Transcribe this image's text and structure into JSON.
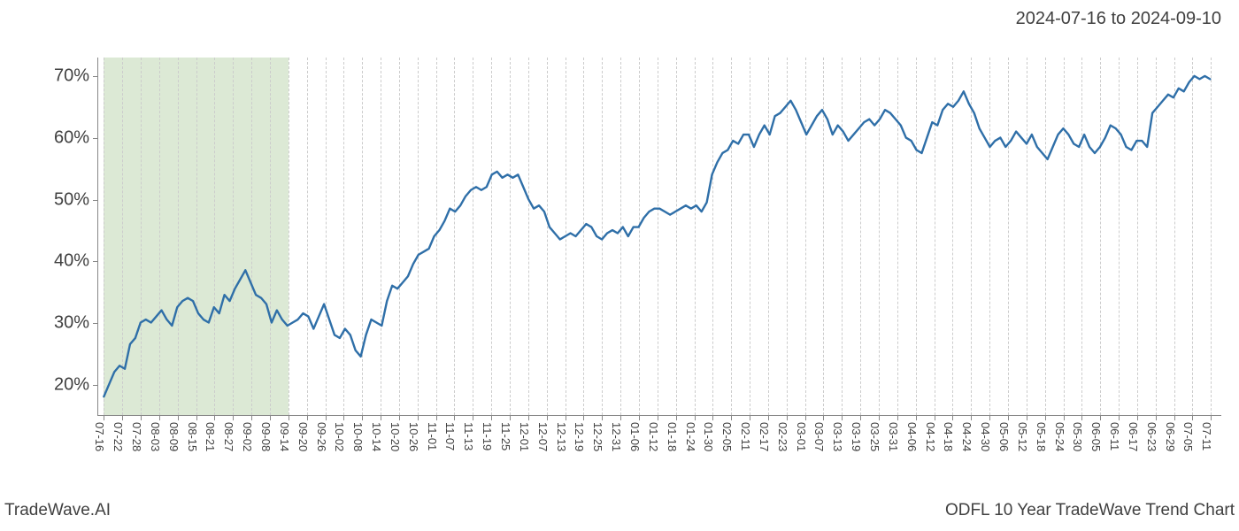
{
  "header": {
    "date_range": "2024-07-16 to 2024-09-10"
  },
  "footer": {
    "left": "TradeWave.AI",
    "right": "ODFL 10 Year TradeWave Trend Chart"
  },
  "chart": {
    "type": "line",
    "background_color": "#ffffff",
    "grid_color": "#cccccc",
    "axis_color": "#888888",
    "line_color": "#2f6fa8",
    "line_width": 2.4,
    "highlight_band": {
      "color": "#dce9d5",
      "x_start_index": 0,
      "x_end_index": 10
    },
    "y_axis": {
      "min": 15,
      "max": 73,
      "ticks": [
        20,
        30,
        40,
        50,
        60,
        70
      ],
      "tick_suffix": "%",
      "label_fontsize": 20
    },
    "x_axis": {
      "labels": [
        "07-16",
        "07-22",
        "07-28",
        "08-03",
        "08-09",
        "08-15",
        "08-21",
        "08-27",
        "09-02",
        "09-08",
        "09-14",
        "09-20",
        "09-26",
        "10-02",
        "10-08",
        "10-14",
        "10-20",
        "10-26",
        "11-01",
        "11-07",
        "11-13",
        "11-19",
        "11-25",
        "12-01",
        "12-07",
        "12-13",
        "12-19",
        "12-25",
        "12-31",
        "01-06",
        "01-12",
        "01-18",
        "01-24",
        "01-30",
        "02-05",
        "02-11",
        "02-17",
        "02-23",
        "03-01",
        "03-07",
        "03-13",
        "03-19",
        "03-25",
        "03-31",
        "04-06",
        "04-12",
        "04-18",
        "04-24",
        "04-30",
        "05-06",
        "05-12",
        "05-18",
        "05-24",
        "05-30",
        "06-05",
        "06-11",
        "06-17",
        "06-23",
        "06-29",
        "07-05",
        "07-11"
      ],
      "label_fontsize": 13
    },
    "series": {
      "values": [
        18.0,
        20.0,
        22.0,
        23.0,
        22.5,
        26.5,
        27.5,
        30.0,
        30.5,
        30.0,
        31.0,
        32.0,
        30.5,
        29.5,
        32.5,
        33.5,
        34.0,
        33.5,
        31.5,
        30.5,
        30.0,
        32.5,
        31.5,
        34.5,
        33.5,
        35.5,
        37.0,
        38.5,
        36.5,
        34.5,
        34.0,
        33.0,
        30.0,
        32.0,
        30.5,
        29.5,
        30.0,
        30.5,
        31.5,
        31.0,
        29.0,
        31.0,
        33.0,
        30.5,
        28.0,
        27.5,
        29.0,
        28.0,
        25.5,
        24.5,
        28.0,
        30.5,
        30.0,
        29.5,
        33.5,
        36.0,
        35.5,
        36.5,
        37.5,
        39.5,
        41.0,
        41.5,
        42.0,
        44.0,
        45.0,
        46.5,
        48.5,
        48.0,
        49.0,
        50.5,
        51.5,
        52.0,
        51.5,
        52.0,
        54.0,
        54.5,
        53.5,
        54.0,
        53.5,
        54.0,
        52.0,
        50.0,
        48.5,
        49.0,
        48.0,
        45.5,
        44.5,
        43.5,
        44.0,
        44.5,
        44.0,
        45.0,
        46.0,
        45.5,
        44.0,
        43.5,
        44.5,
        45.0,
        44.5,
        45.5,
        44.0,
        45.5,
        45.5,
        47.0,
        48.0,
        48.5,
        48.5,
        48.0,
        47.5,
        48.0,
        48.5,
        49.0,
        48.5,
        49.0,
        48.0,
        49.5,
        54.0,
        56.0,
        57.5,
        58.0,
        59.5,
        59.0,
        60.5,
        60.5,
        58.5,
        60.5,
        62.0,
        60.5,
        63.5,
        64.0,
        65.0,
        66.0,
        64.5,
        62.5,
        60.5,
        62.0,
        63.5,
        64.5,
        63.0,
        60.5,
        62.0,
        61.0,
        59.5,
        60.5,
        61.5,
        62.5,
        63.0,
        62.0,
        63.0,
        64.5,
        64.0,
        63.0,
        62.0,
        60.0,
        59.5,
        58.0,
        57.5,
        60.0,
        62.5,
        62.0,
        64.5,
        65.5,
        65.0,
        66.0,
        67.5,
        65.5,
        64.0,
        61.5,
        60.0,
        58.5,
        59.5,
        60.0,
        58.5,
        59.5,
        61.0,
        60.0,
        59.0,
        60.5,
        58.5,
        57.5,
        56.5,
        58.5,
        60.5,
        61.5,
        60.5,
        59.0,
        58.5,
        60.5,
        58.5,
        57.5,
        58.5,
        60.0,
        62.0,
        61.5,
        60.5,
        58.5,
        58.0,
        59.5,
        59.5,
        58.5,
        64.0,
        65.0,
        66.0,
        67.0,
        66.5,
        68.0,
        67.5,
        69.0,
        70.0,
        69.5,
        70.0,
        69.5
      ]
    }
  }
}
